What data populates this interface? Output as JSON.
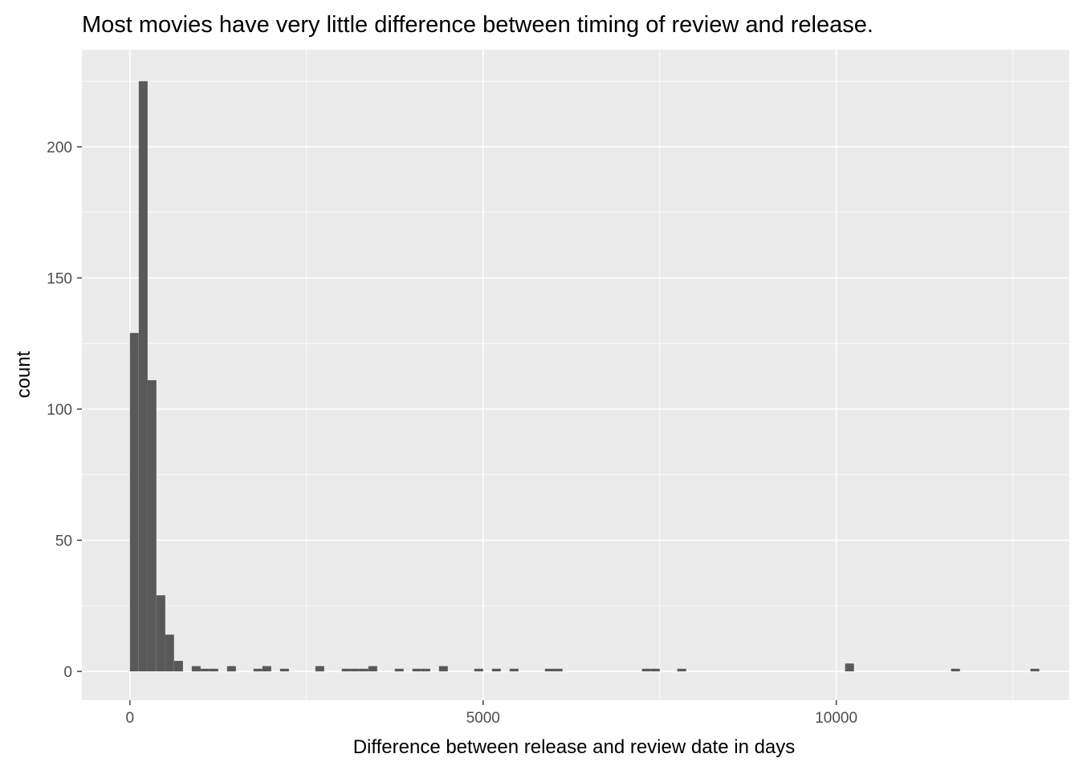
{
  "chart_data": {
    "type": "bar",
    "title": "Most movies have very little difference between timing of review and release.",
    "xlabel": "Difference between release and review date in days",
    "ylabel": "count",
    "x_ticks": [
      0,
      5000,
      10000
    ],
    "y_ticks": [
      0,
      50,
      100,
      150,
      200
    ],
    "xlim": [
      -680,
      13300
    ],
    "ylim": [
      -11,
      237
    ],
    "bin_width": 125,
    "bins": [
      {
        "x": 62,
        "count": 129
      },
      {
        "x": 188,
        "count": 225
      },
      {
        "x": 312,
        "count": 111
      },
      {
        "x": 438,
        "count": 29
      },
      {
        "x": 562,
        "count": 14
      },
      {
        "x": 688,
        "count": 4
      },
      {
        "x": 938,
        "count": 2
      },
      {
        "x": 1062,
        "count": 1
      },
      {
        "x": 1188,
        "count": 1
      },
      {
        "x": 1438,
        "count": 2
      },
      {
        "x": 1812,
        "count": 1
      },
      {
        "x": 1938,
        "count": 2
      },
      {
        "x": 2188,
        "count": 1
      },
      {
        "x": 2688,
        "count": 2
      },
      {
        "x": 3062,
        "count": 1
      },
      {
        "x": 3188,
        "count": 1
      },
      {
        "x": 3312,
        "count": 1
      },
      {
        "x": 3438,
        "count": 2
      },
      {
        "x": 3812,
        "count": 1
      },
      {
        "x": 4062,
        "count": 1
      },
      {
        "x": 4188,
        "count": 1
      },
      {
        "x": 4438,
        "count": 2
      },
      {
        "x": 4938,
        "count": 1
      },
      {
        "x": 5188,
        "count": 1
      },
      {
        "x": 5438,
        "count": 1
      },
      {
        "x": 5938,
        "count": 1
      },
      {
        "x": 6062,
        "count": 1
      },
      {
        "x": 7312,
        "count": 1
      },
      {
        "x": 7438,
        "count": 1
      },
      {
        "x": 7812,
        "count": 1
      },
      {
        "x": 10188,
        "count": 3
      },
      {
        "x": 11688,
        "count": 1
      },
      {
        "x": 12812,
        "count": 1
      }
    ],
    "grid": true,
    "bar_color": "#595959",
    "panel_background": "#ebebeb",
    "grid_color": "#ffffff"
  }
}
